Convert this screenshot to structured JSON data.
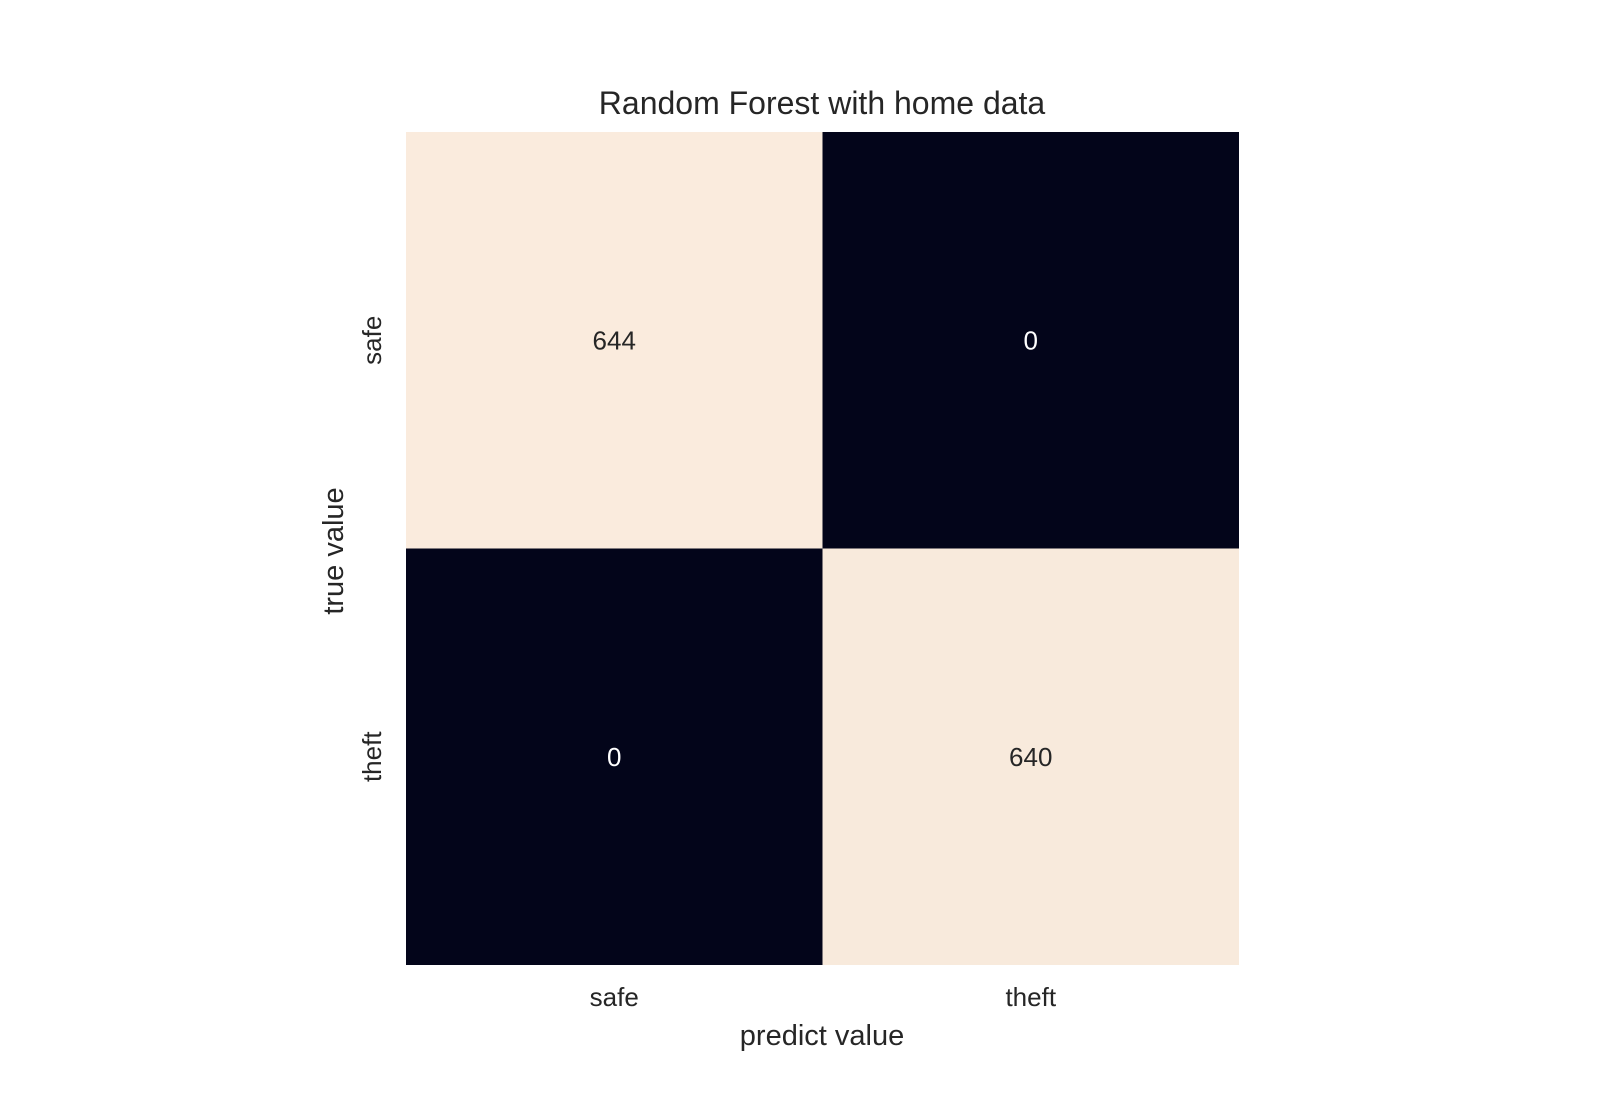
{
  "chart_data": {
    "type": "heatmap",
    "title": "Random Forest with home data",
    "xlabel": "predict value",
    "ylabel": "true value",
    "x_categories": [
      "safe",
      "theft"
    ],
    "y_categories": [
      "safe",
      "theft"
    ],
    "values": [
      [
        644,
        0
      ],
      [
        0,
        640
      ]
    ],
    "value_range": [
      0,
      644
    ],
    "colorbar": false,
    "grid": false,
    "colors": {
      "low": "#03051a",
      "high": "#faebdd",
      "label_on_light": "#262626",
      "label_on_dark": "#ffffff",
      "axis_text": "#262626"
    }
  }
}
